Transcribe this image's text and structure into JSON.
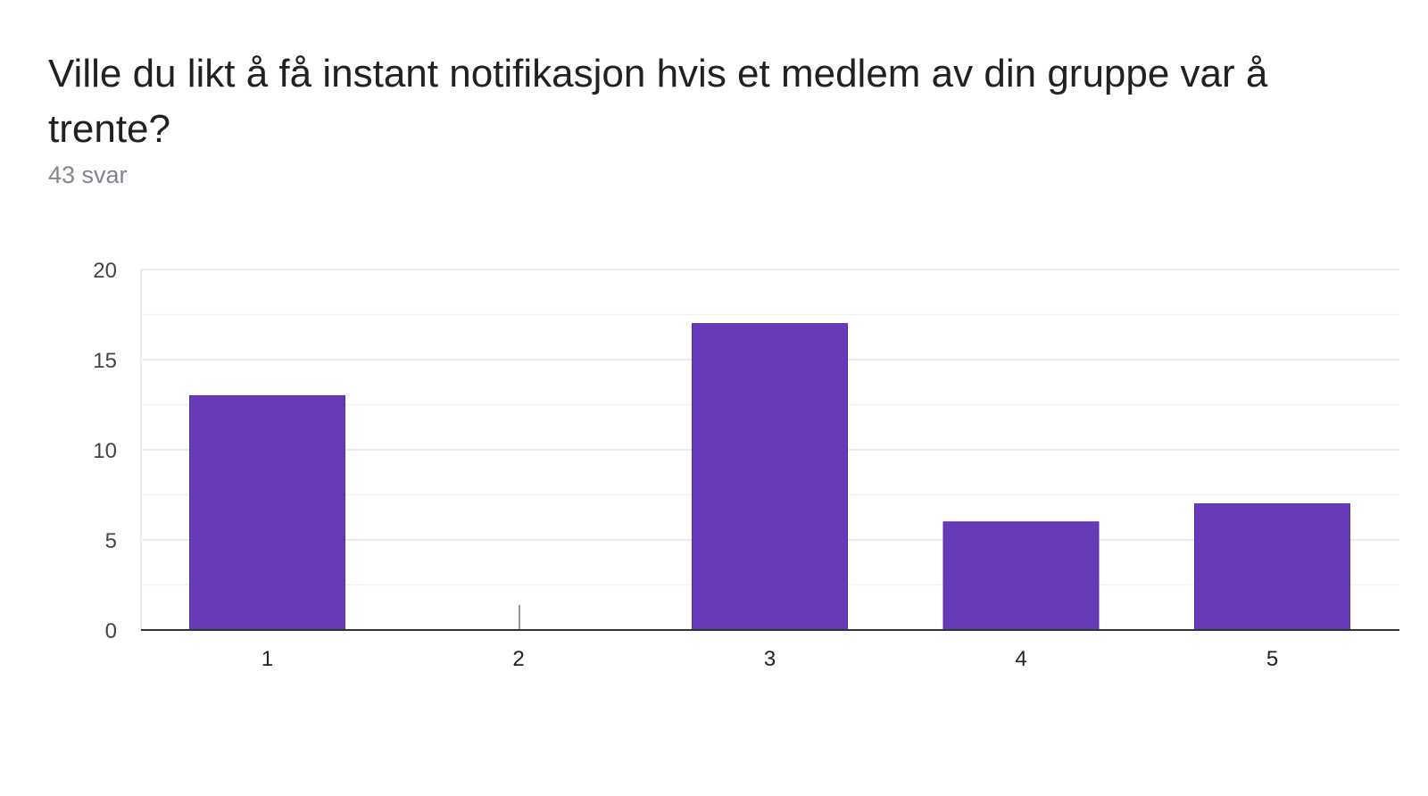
{
  "header": {
    "title": "Ville du likt å få instant notifikasjon hvis et medlem av din gruppe var å trente?",
    "response_count": "43 svar"
  },
  "colors": {
    "bar": "#673ab7",
    "gridline": "#ebebeb",
    "axis": "#333333"
  },
  "chart_data": {
    "type": "bar",
    "categories": [
      "1",
      "2",
      "3",
      "4",
      "5"
    ],
    "values": [
      13,
      0,
      17,
      6,
      7
    ],
    "title": "Ville du likt å få instant notifikasjon hvis et medlem av din gruppe var å trente?",
    "xlabel": "",
    "ylabel": "",
    "ylim": [
      0,
      20
    ],
    "yticks": [
      0,
      5,
      10,
      15,
      20
    ],
    "grid": true,
    "legend": "none"
  }
}
